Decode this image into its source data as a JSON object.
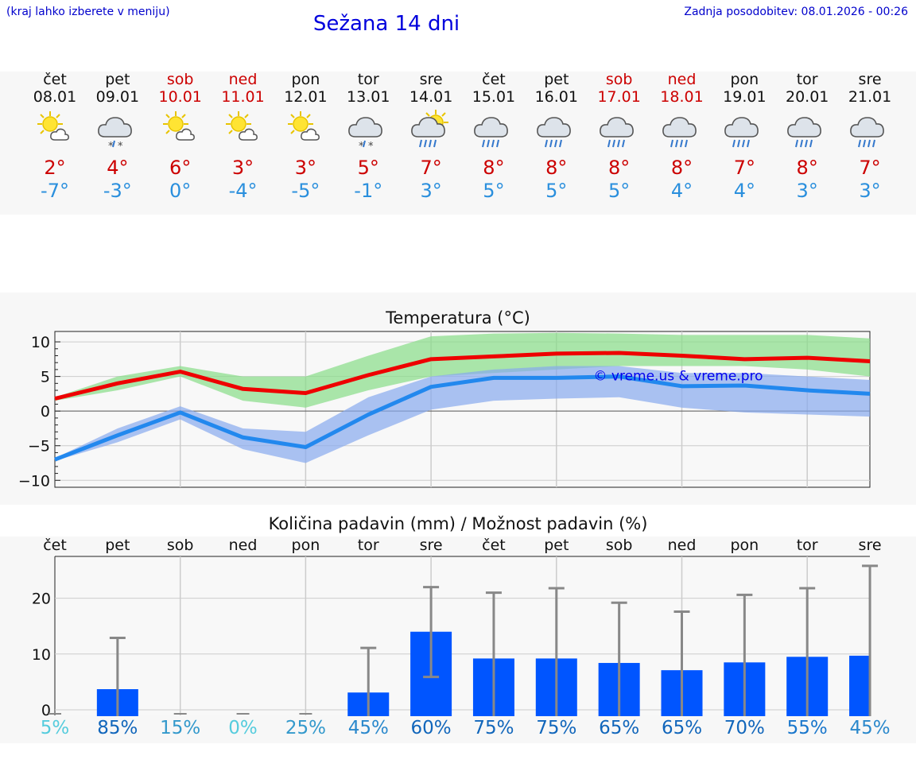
{
  "header": {
    "hint": "(kraj lahko izberete v meniju)",
    "title": "Sežana 14 dni",
    "updated": "Zadnja posodobitev: 08.01.2026 - 00:26"
  },
  "days": [
    {
      "name": "čet",
      "date": "08.01",
      "icon": "sun-cloud-icon",
      "tmax": "2°",
      "tmin": "-7°",
      "weekend": false
    },
    {
      "name": "pet",
      "date": "09.01",
      "icon": "cloud-snow-icon",
      "tmax": "4°",
      "tmin": "-3°",
      "weekend": false
    },
    {
      "name": "sob",
      "date": "10.01",
      "icon": "sun-cloud-icon",
      "tmax": "6°",
      "tmin": "0°",
      "weekend": true
    },
    {
      "name": "ned",
      "date": "11.01",
      "icon": "sun-cloud-icon",
      "tmax": "3°",
      "tmin": "-4°",
      "weekend": true
    },
    {
      "name": "pon",
      "date": "12.01",
      "icon": "sun-cloud-icon",
      "tmax": "3°",
      "tmin": "-5°",
      "weekend": false
    },
    {
      "name": "tor",
      "date": "13.01",
      "icon": "cloud-snow-icon",
      "tmax": "5°",
      "tmin": "-1°",
      "weekend": false
    },
    {
      "name": "sre",
      "date": "14.01",
      "icon": "sun-rain-icon",
      "tmax": "7°",
      "tmin": "3°",
      "weekend": false
    },
    {
      "name": "čet",
      "date": "15.01",
      "icon": "cloud-rain-icon",
      "tmax": "8°",
      "tmin": "5°",
      "weekend": false
    },
    {
      "name": "pet",
      "date": "16.01",
      "icon": "cloud-rain-icon",
      "tmax": "8°",
      "tmin": "5°",
      "weekend": false
    },
    {
      "name": "sob",
      "date": "17.01",
      "icon": "cloud-rain-icon",
      "tmax": "8°",
      "tmin": "5°",
      "weekend": true
    },
    {
      "name": "ned",
      "date": "18.01",
      "icon": "cloud-rain-icon",
      "tmax": "8°",
      "tmin": "4°",
      "weekend": true
    },
    {
      "name": "pon",
      "date": "19.01",
      "icon": "cloud-rain-icon",
      "tmax": "7°",
      "tmin": "4°",
      "weekend": false
    },
    {
      "name": "tor",
      "date": "20.01",
      "icon": "cloud-rain-icon",
      "tmax": "8°",
      "tmin": "3°",
      "weekend": false
    },
    {
      "name": "sre",
      "date": "21.01",
      "icon": "cloud-rain-icon",
      "tmax": "7°",
      "tmin": "3°",
      "weekend": false
    }
  ],
  "colors": {
    "max": "#ee0000",
    "min": "#2288ee",
    "maxBand": "#88dd88",
    "minBand": "#88aaee",
    "bar": "#0055ff",
    "err": "#888888"
  },
  "chart_data": [
    {
      "type": "line",
      "title": "Temperatura (°C)",
      "watermark": "© vreme.us & vreme.pro",
      "ylim": [
        -11,
        11.5
      ],
      "yticks": [
        10,
        5,
        0,
        -5,
        -10
      ],
      "ytick_labels": [
        "10",
        "5",
        "0",
        "−5",
        "−10"
      ],
      "series": [
        {
          "name": "max",
          "values": [
            1.8,
            4.0,
            5.7,
            3.2,
            2.6,
            5.2,
            7.5,
            7.9,
            8.3,
            8.4,
            8.0,
            7.5,
            7.7,
            7.2
          ],
          "band_low": [
            1.5,
            3.0,
            5.0,
            1.5,
            0.5,
            3.0,
            5.0,
            5.5,
            6.0,
            6.5,
            6.5,
            6.5,
            6.0,
            5.0
          ],
          "band_high": [
            2.0,
            5.0,
            6.5,
            5.0,
            5.0,
            8.0,
            10.8,
            11.2,
            11.3,
            11.2,
            11.0,
            11.0,
            11.0,
            10.5
          ]
        },
        {
          "name": "min",
          "values": [
            -7.0,
            -3.5,
            -0.2,
            -3.8,
            -5.2,
            -0.5,
            3.5,
            4.8,
            4.8,
            5.0,
            3.6,
            3.7,
            3.0,
            2.5
          ],
          "band_low": [
            -7.2,
            -4.5,
            -1.2,
            -5.5,
            -7.5,
            -3.5,
            0.2,
            1.5,
            1.8,
            2.0,
            0.5,
            -0.2,
            -0.5,
            -0.8
          ],
          "band_high": [
            -6.8,
            -2.5,
            0.7,
            -2.5,
            -3.0,
            2.0,
            5.0,
            6.0,
            6.5,
            6.5,
            5.5,
            5.5,
            5.0,
            4.5
          ]
        }
      ]
    },
    {
      "type": "bar",
      "title": "Količina padavin (mm) / Možnost padavin (%)",
      "categories": [
        "čet",
        "pet",
        "sob",
        "ned",
        "pon",
        "tor",
        "sre",
        "čet",
        "pet",
        "sob",
        "ned",
        "pon",
        "tor",
        "sre"
      ],
      "values": [
        0,
        3.7,
        0,
        0,
        0,
        3.1,
        14,
        9.2,
        9.2,
        8.4,
        7.1,
        8.5,
        9.5,
        9.7
      ],
      "err_low": [
        0,
        0,
        0,
        0,
        0,
        0,
        5.9,
        0,
        0,
        0,
        0,
        0,
        0,
        0
      ],
      "err_high": [
        0,
        12.9,
        0,
        0,
        0,
        11.1,
        22.0,
        21.0,
        21.8,
        19.2,
        17.6,
        20.6,
        21.8,
        25.8
      ],
      "ylim": [
        -1,
        27.5
      ],
      "yticks": [
        20,
        10,
        0
      ],
      "probability": [
        "5%",
        "85%",
        "15%",
        "0%",
        "25%",
        "45%",
        "60%",
        "75%",
        "75%",
        "65%",
        "65%",
        "70%",
        "55%",
        "45%"
      ],
      "probability_colors": [
        "#55ccdd",
        "#1166bb",
        "#3399cc",
        "#55ccdd",
        "#3399cc",
        "#2a88cc",
        "#1166bb",
        "#1166bb",
        "#1166bb",
        "#1166bb",
        "#1166bb",
        "#1166bb",
        "#1a77cc",
        "#2a88cc"
      ]
    }
  ]
}
